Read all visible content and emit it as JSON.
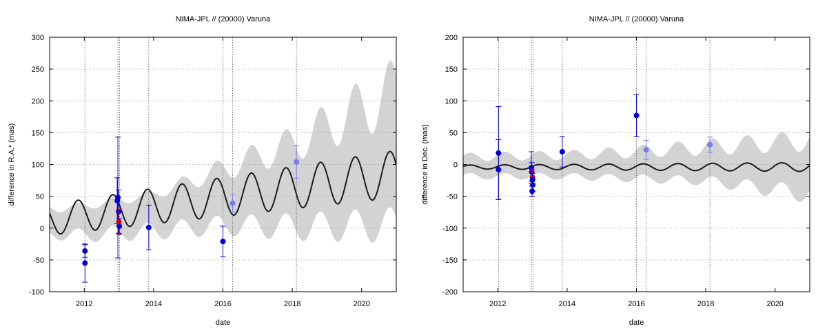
{
  "chart_data": [
    {
      "type": "scatter",
      "title": "NIMA-JPL // (20000) Varuna",
      "xlabel": "date",
      "ylabel": "difference in R.A.* (mas)",
      "xlim": [
        2011.0,
        2021.0
      ],
      "ylim": [
        -100,
        300
      ],
      "xticks": [
        2012,
        2014,
        2016,
        2018,
        2020
      ],
      "yticks": [
        -100,
        -50,
        0,
        50,
        100,
        150,
        200,
        250,
        300
      ],
      "grid": true,
      "colors": {
        "band": "#d3d3d3",
        "model": "#1a1a1a",
        "obs": "#0000dd",
        "obs_light": "#7b7bf0",
        "highlight": "#ee0000"
      },
      "vlines": [
        2012.02,
        2012.97,
        2013.02,
        2013.86,
        2016.0,
        2016.28,
        2018.12
      ],
      "model": {
        "offset_start": 13,
        "offset_end": 85,
        "amp_start": 24,
        "amp_end": 37,
        "period": 0.9993,
        "phase_peak": 2011.82
      },
      "band": {
        "low": [
          [
            2011.0,
            -20
          ],
          [
            2012.0,
            -25
          ],
          [
            2014.0,
            -22
          ],
          [
            2016.0,
            -15
          ],
          [
            2018.0,
            -25
          ],
          [
            2021.0,
            -30
          ]
        ],
        "high": [
          [
            2011.0,
            38
          ],
          [
            2012.0,
            40
          ],
          [
            2014.0,
            60
          ],
          [
            2016.0,
            110
          ],
          [
            2018.0,
            160
          ],
          [
            2021.0,
            270
          ]
        ]
      },
      "points": [
        {
          "x": 2012.02,
          "y": -55,
          "err": 30,
          "group": "obs"
        },
        {
          "x": 2012.02,
          "y": -36,
          "err": 10,
          "group": "obs"
        },
        {
          "x": 2012.95,
          "y": 43,
          "err": 36,
          "group": "obs"
        },
        {
          "x": 2012.97,
          "y": 48,
          "err": 95,
          "group": "obs"
        },
        {
          "x": 2012.99,
          "y": 26,
          "err": 34,
          "group": "obs"
        },
        {
          "x": 2013.0,
          "y": 10,
          "err": 20,
          "group": "highlight"
        },
        {
          "x": 2013.01,
          "y": 3,
          "err": 12,
          "group": "obs"
        },
        {
          "x": 2013.86,
          "y": 1,
          "err": 35,
          "group": "obs"
        },
        {
          "x": 2016.0,
          "y": -21,
          "err": 24,
          "group": "obs"
        },
        {
          "x": 2016.28,
          "y": 39,
          "err": 14,
          "group": "obs_light"
        },
        {
          "x": 2018.12,
          "y": 104,
          "err": 26,
          "group": "obs_light"
        }
      ]
    },
    {
      "type": "scatter",
      "title": "NIMA-JPL // (20000) Varuna",
      "xlabel": "date",
      "ylabel": "difference in Dec. (mas)",
      "xlim": [
        2011.0,
        2021.0
      ],
      "ylim": [
        -200,
        200
      ],
      "xticks": [
        2012,
        2014,
        2016,
        2018,
        2020
      ],
      "yticks": [
        -200,
        -150,
        -100,
        -50,
        0,
        50,
        100,
        150,
        200
      ],
      "grid": true,
      "colors": {
        "band": "#d3d3d3",
        "model": "#1a1a1a",
        "obs": "#0000dd",
        "obs_light": "#7b7bf0",
        "highlight": "#ee0000"
      },
      "vlines": [
        2012.02,
        2012.97,
        2013.02,
        2013.86,
        2016.0,
        2016.28,
        2018.12
      ],
      "model": {
        "offset_start": -4,
        "offset_end": -4,
        "amp_start": 3,
        "amp_end": 7,
        "period": 0.9993,
        "phase_peak": 2012.2
      },
      "band": {
        "low": [
          [
            2011.0,
            -25
          ],
          [
            2012.0,
            -25
          ],
          [
            2014.0,
            -25
          ],
          [
            2016.0,
            -30
          ],
          [
            2018.0,
            -35
          ],
          [
            2021.0,
            -65
          ]
        ],
        "high": [
          [
            2011.0,
            18
          ],
          [
            2012.0,
            20
          ],
          [
            2014.0,
            22
          ],
          [
            2016.0,
            30
          ],
          [
            2018.0,
            40
          ],
          [
            2021.0,
            55
          ]
        ]
      },
      "points": [
        {
          "x": 2012.02,
          "y": 18,
          "err": 73,
          "group": "obs"
        },
        {
          "x": 2012.02,
          "y": -8,
          "err": 47,
          "group": "obs"
        },
        {
          "x": 2012.97,
          "y": -5,
          "err": 25,
          "group": "obs"
        },
        {
          "x": 2012.98,
          "y": -12,
          "err": 15,
          "group": "obs"
        },
        {
          "x": 2013.0,
          "y": -20,
          "err": 12,
          "group": "highlight"
        },
        {
          "x": 2013.0,
          "y": -24,
          "err": 10,
          "group": "obs"
        },
        {
          "x": 2013.01,
          "y": -32,
          "err": 10,
          "group": "obs"
        },
        {
          "x": 2012.99,
          "y": -42,
          "err": 8,
          "group": "obs"
        },
        {
          "x": 2013.86,
          "y": 20,
          "err": 24,
          "group": "obs"
        },
        {
          "x": 2016.0,
          "y": 77,
          "err": 33,
          "group": "obs"
        },
        {
          "x": 2016.28,
          "y": 23,
          "err": 15,
          "group": "obs_light"
        },
        {
          "x": 2018.12,
          "y": 31,
          "err": 12,
          "group": "obs_light"
        }
      ]
    }
  ]
}
